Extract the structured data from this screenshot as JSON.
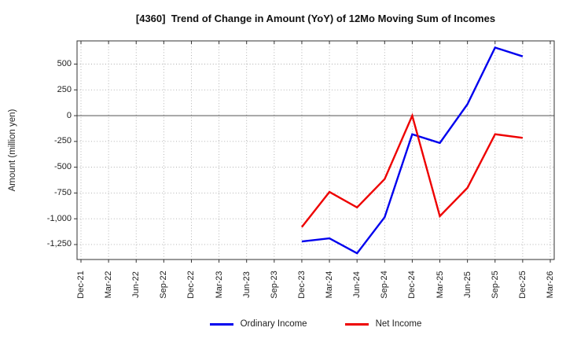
{
  "chart_data": {
    "type": "line",
    "title": "[4360]  Trend of Change in Amount (YoY) of 12Mo Moving Sum of Incomes",
    "ylabel": "Amount (million yen)",
    "xlabel": "",
    "categories": [
      "Dec-21",
      "Mar-22",
      "Jun-22",
      "Sep-22",
      "Dec-22",
      "Mar-23",
      "Jun-23",
      "Sep-23",
      "Dec-23",
      "Mar-24",
      "Jun-24",
      "Sep-24",
      "Dec-24",
      "Mar-25",
      "Jun-25",
      "Sep-25",
      "Dec-25",
      "Mar-26"
    ],
    "yticks": [
      500,
      250,
      0,
      -250,
      -500,
      -750,
      -1000,
      -1250
    ],
    "ytick_labels": [
      "500",
      "250",
      "0",
      "-250",
      "-500",
      "-750",
      "-1,000",
      "-1,250"
    ],
    "ylim": [
      -1395,
      725
    ],
    "grid": true,
    "zero_line": true,
    "legend_position": "bottom",
    "colors": {
      "grid": "#ababab",
      "zero_line": "#666666",
      "frame": "#333333",
      "ordinary_income": "#0000ee",
      "net_income": "#ee0000"
    },
    "series": [
      {
        "name": "Ordinary Income",
        "color": "#0000ee",
        "start_index": 8,
        "x": [
          "Dec-23",
          "Mar-24",
          "Jun-24",
          "Sep-24",
          "Dec-24",
          "Mar-25",
          "Jun-25",
          "Sep-25",
          "Dec-25"
        ],
        "values": [
          -1220,
          -1190,
          -1335,
          -985,
          -180,
          -265,
          110,
          660,
          575
        ]
      },
      {
        "name": "Net Income",
        "color": "#ee0000",
        "start_index": 8,
        "x": [
          "Dec-23",
          "Mar-24",
          "Jun-24",
          "Sep-24",
          "Dec-24",
          "Mar-25",
          "Jun-25",
          "Sep-25",
          "Dec-25"
        ],
        "values": [
          -1080,
          -740,
          -890,
          -615,
          0,
          -975,
          -700,
          -180,
          -215
        ]
      }
    ]
  }
}
